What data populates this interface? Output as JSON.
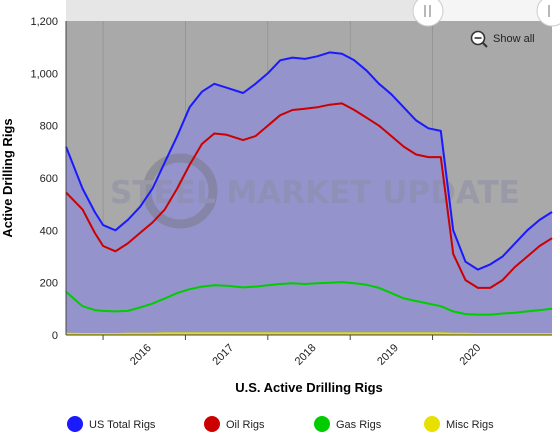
{
  "chart_data": {
    "type": "area",
    "title": "",
    "xlabel": "U.S. Active Drilling Rigs",
    "ylabel": "Active Drilling Rigs",
    "ylim": [
      0,
      1200
    ],
    "yticks": [
      "0",
      "200",
      "400",
      "600",
      "800",
      "1,000",
      "1,200"
    ],
    "ytick_values": [
      0,
      200,
      400,
      600,
      800,
      1000,
      1200
    ],
    "xlim": [
      2015.55,
      2021.45
    ],
    "xticks": [
      "2016",
      "2017",
      "2018",
      "2019",
      "2020"
    ],
    "xtick_values": [
      2016,
      2017,
      2018,
      2019,
      2020
    ],
    "grid": "vertical",
    "legend_position": "bottom",
    "x": [
      2015.55,
      2015.75,
      2015.9,
      2016.0,
      2016.15,
      2016.3,
      2016.45,
      2016.6,
      2016.75,
      2016.9,
      2017.05,
      2017.2,
      2017.35,
      2017.5,
      2017.7,
      2017.85,
      2018.0,
      2018.15,
      2018.3,
      2018.45,
      2018.6,
      2018.75,
      2018.9,
      2019.05,
      2019.2,
      2019.35,
      2019.5,
      2019.65,
      2019.8,
      2019.95,
      2020.1,
      2020.25,
      2020.4,
      2020.55,
      2020.7,
      2020.85,
      2021.0,
      2021.15,
      2021.3,
      2021.45
    ],
    "series": [
      {
        "name": "US Total Rigs",
        "color": "#1a1aff",
        "values": [
          720,
          560,
          470,
          420,
          400,
          440,
          490,
          560,
          660,
          760,
          870,
          930,
          960,
          945,
          925,
          960,
          1000,
          1050,
          1060,
          1055,
          1065,
          1080,
          1075,
          1050,
          1010,
          960,
          920,
          870,
          820,
          790,
          780,
          400,
          280,
          250,
          270,
          300,
          350,
          400,
          440,
          470
        ]
      },
      {
        "name": "Oil Rigs",
        "color": "#cc0000",
        "values": [
          545,
          480,
          390,
          340,
          320,
          350,
          390,
          430,
          480,
          560,
          650,
          730,
          770,
          765,
          745,
          760,
          800,
          840,
          860,
          865,
          870,
          880,
          885,
          860,
          830,
          800,
          760,
          720,
          690,
          680,
          680,
          310,
          210,
          180,
          180,
          210,
          260,
          300,
          340,
          370
        ]
      },
      {
        "name": "Gas Rigs",
        "color": "#00cc00",
        "values": [
          165,
          110,
          95,
          92,
          90,
          92,
          105,
          120,
          140,
          160,
          175,
          185,
          190,
          188,
          182,
          185,
          190,
          195,
          198,
          195,
          198,
          200,
          202,
          198,
          192,
          180,
          160,
          140,
          130,
          120,
          110,
          90,
          80,
          78,
          78,
          82,
          85,
          90,
          95,
          100
        ]
      },
      {
        "name": "Misc Rigs",
        "color": "#e8e000",
        "values": [
          5,
          4,
          4,
          4,
          4,
          5,
          5,
          5,
          6,
          6,
          6,
          6,
          6,
          6,
          6,
          6,
          6,
          6,
          6,
          6,
          6,
          6,
          6,
          6,
          6,
          6,
          6,
          6,
          6,
          6,
          6,
          5,
          5,
          4,
          4,
          4,
          4,
          4,
          4,
          4
        ]
      }
    ]
  },
  "ui": {
    "show_all_label": "Show all",
    "watermark": "STEEL MARKET UPDATE"
  }
}
